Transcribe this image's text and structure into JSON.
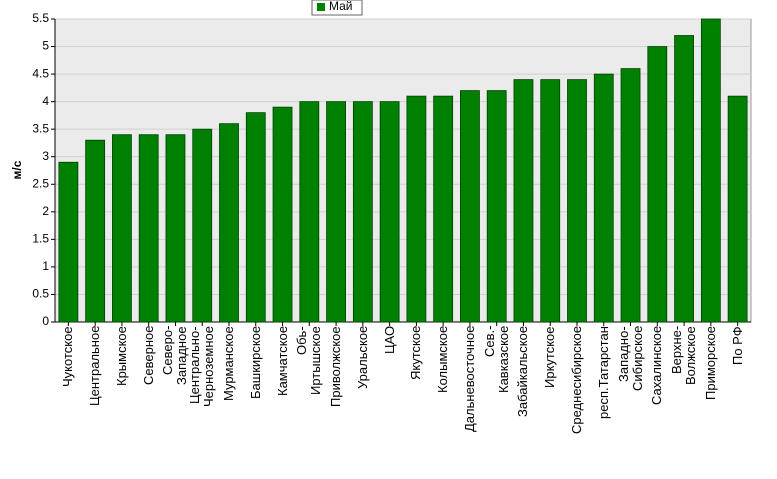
{
  "chart_data": {
    "type": "bar",
    "y_label": "м/с",
    "categories": [
      "Чукотское",
      "Центральное",
      "Крымское",
      "Северное",
      "Северо-\nЗападное",
      "Центрально-\nЧерноземное",
      "Мурманское",
      "Башкирское",
      "Камчатское",
      "Обь-\nИртышское",
      "Приволжское",
      "Уральское",
      "ЦАО",
      "Якутское",
      "Колымское",
      "Дальневосточное",
      "Сев.-\nКавказское",
      "Забайкальское",
      "Иркутское",
      "Среднесибирское",
      "респ.Татарстан",
      "Западно-\nСибирское",
      "Сахалинское",
      "Верхне-\nВолжское",
      "Приморское",
      "По РФ"
    ],
    "series": [
      {
        "name": "Май",
        "color": "#008000",
        "values": [
          2.9,
          3.3,
          3.4,
          3.4,
          3.4,
          3.5,
          3.6,
          3.8,
          3.9,
          4.0,
          4.0,
          4.0,
          4.0,
          4.1,
          4.1,
          4.2,
          4.2,
          4.4,
          4.4,
          4.4,
          4.5,
          4.6,
          5.0,
          5.2,
          5.5,
          4.1
        ]
      }
    ],
    "ylim": [
      0,
      5.5
    ],
    "yticks": [
      0,
      0.5,
      1,
      1.5,
      2,
      2.5,
      3,
      3.5,
      4,
      4.5,
      5,
      5.5
    ],
    "grid": true
  }
}
